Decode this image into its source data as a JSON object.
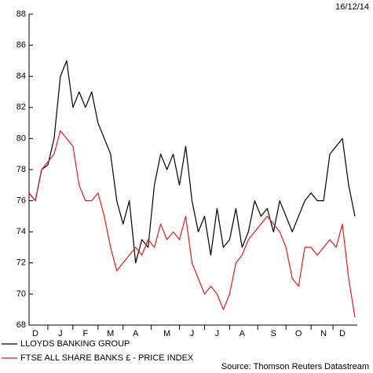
{
  "chart_data": {
    "type": "line",
    "date_label": "16/12/14",
    "source": "Source: Thomson Reuters Datastream",
    "categories": [
      null,
      "D",
      null,
      null,
      null,
      "J",
      null,
      null,
      null,
      "F",
      null,
      null,
      null,
      "M",
      null,
      null,
      null,
      "A",
      null,
      null,
      null,
      null,
      "M",
      null,
      null,
      null,
      "J",
      null,
      null,
      null,
      "J",
      null,
      null,
      null,
      "A",
      null,
      null,
      null,
      null,
      "S",
      null,
      null,
      null,
      "O",
      null,
      null,
      null,
      "N",
      null,
      null,
      "D",
      null,
      null
    ],
    "series": [
      {
        "name": "LLOYDS BANKING GROUP",
        "color": "#000000",
        "values": [
          76.5,
          76,
          78,
          78.3,
          80,
          84,
          85,
          82,
          83,
          82,
          83,
          81,
          80,
          79,
          76,
          74.5,
          76,
          72,
          73.5,
          73,
          77,
          79,
          78,
          79,
          77,
          79.5,
          76,
          74,
          75,
          72.5,
          75.5,
          73,
          73.5,
          75.5,
          73,
          74,
          76,
          75,
          75.5,
          74,
          76,
          75,
          74,
          75,
          76,
          76.5,
          76,
          76,
          79,
          79.5,
          80,
          77,
          75
        ]
      },
      {
        "name": "FTSE ALL SHARE BANKS £ - PRICE INDEX",
        "color": "#e8191c",
        "values": [
          76.5,
          76,
          78,
          78.5,
          79,
          80.5,
          80,
          79.5,
          77,
          76,
          76,
          76.5,
          75,
          73,
          71.5,
          72,
          72.5,
          73,
          72.5,
          73.5,
          73,
          74.5,
          73.5,
          74,
          73.5,
          75,
          72,
          71,
          70,
          70.5,
          70,
          69,
          70,
          72,
          72.5,
          73.5,
          74,
          74.5,
          75,
          74.5,
          74,
          73,
          71,
          70.5,
          73,
          73,
          72.5,
          73,
          73.5,
          73,
          74.5,
          71,
          68.5
        ]
      }
    ],
    "ylim": [
      68,
      88
    ],
    "yticks": [
      68,
      70,
      72,
      74,
      76,
      78,
      80,
      82,
      84,
      86,
      88
    ]
  }
}
